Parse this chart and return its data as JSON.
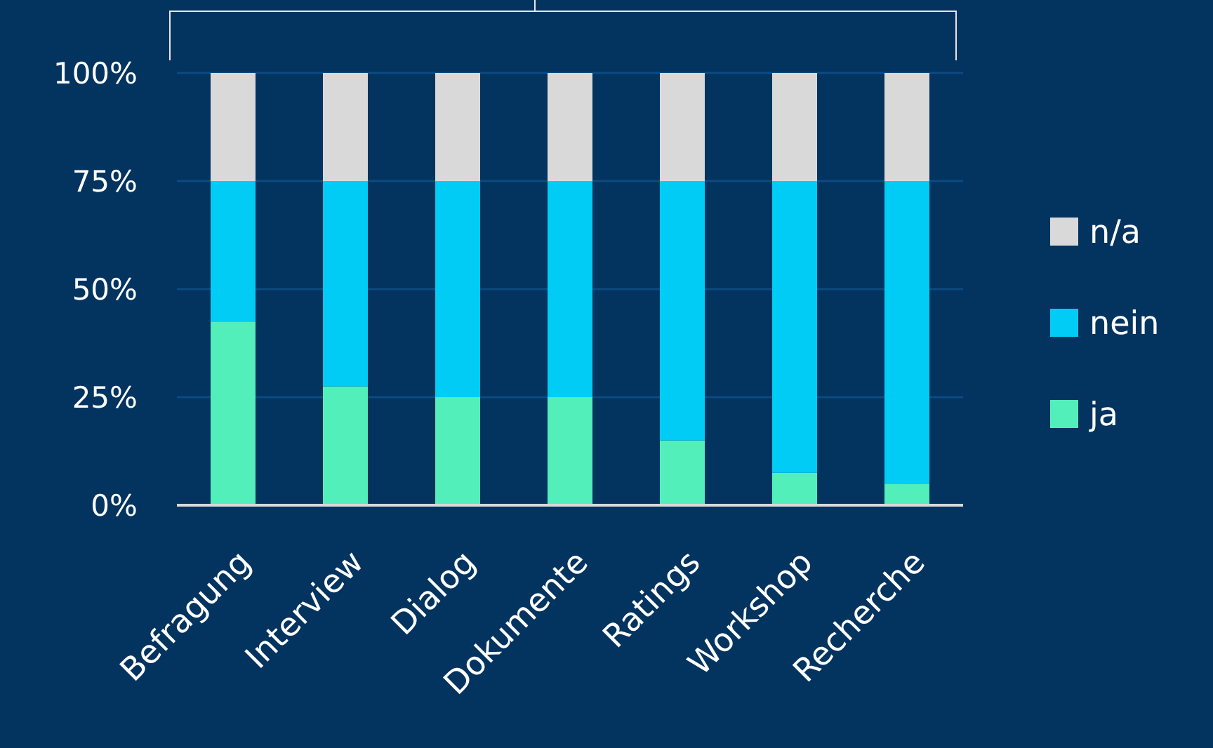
{
  "chart_data": {
    "type": "bar",
    "stacked": true,
    "categories": [
      "Befragung",
      "Interview",
      "Dialog",
      "Dokumente",
      "Ratings",
      "Workshop",
      "Recherche"
    ],
    "series": [
      {
        "name": "ja",
        "color": "#52efbb",
        "values": [
          42.5,
          27.5,
          25,
          25,
          15,
          7.5,
          5
        ]
      },
      {
        "name": "nein",
        "color": "#00ccf5",
        "values": [
          32.5,
          47.5,
          50,
          50,
          60,
          67.5,
          70
        ]
      },
      {
        "name": "n/a",
        "color": "#d9d9d9",
        "values": [
          25,
          25,
          25,
          25,
          25,
          25,
          25
        ]
      }
    ],
    "ylim": [
      0,
      100
    ],
    "yticks": [
      {
        "value": 0,
        "label": "0%"
      },
      {
        "value": 25,
        "label": "25%"
      },
      {
        "value": 50,
        "label": "50%"
      },
      {
        "value": 75,
        "label": "75%"
      },
      {
        "value": 100,
        "label": "100%"
      }
    ],
    "grid": "y",
    "legend": "right"
  }
}
